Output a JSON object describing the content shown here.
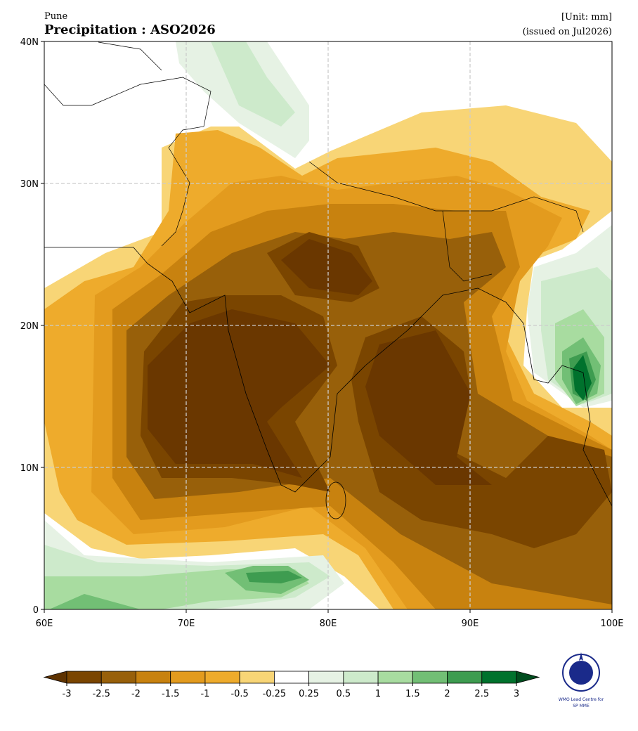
{
  "header": {
    "location": "Pune",
    "title": "Precipitation : ASO2026",
    "unit": "[Unit: mm]",
    "issued": "(issued on Jul2026)"
  },
  "map": {
    "xlim": [
      60,
      100
    ],
    "ylim": [
      0,
      40
    ],
    "xticks": [
      {
        "value": 60,
        "label": "60E"
      },
      {
        "value": 70,
        "label": "70E"
      },
      {
        "value": 80,
        "label": "80E"
      },
      {
        "value": 90,
        "label": "90E"
      },
      {
        "value": 100,
        "label": "100E"
      }
    ],
    "yticks": [
      0,
      {
        "value": 10,
        "label": "10N"
      },
      {
        "value": 20,
        "label": "20N"
      },
      {
        "value": 30,
        "label": "30N"
      },
      {
        "value": 40,
        "label": "40N"
      }
    ],
    "grid": true
  },
  "colorbar": {
    "levels": [
      -3,
      -2.5,
      -2,
      -1.5,
      -1,
      -0.5,
      -0.25,
      0.25,
      0.5,
      1,
      1.5,
      2,
      2.5,
      3
    ],
    "colors": [
      "#7a4500",
      "#98600a",
      "#c8820f",
      "#e39b1e",
      "#eeab2c",
      "#f8d576",
      "#ffffff",
      "#e6f2e4",
      "#cdeacb",
      "#a8dca0",
      "#72bf75",
      "#3e9c50",
      "#00722d"
    ],
    "extend_colors": [
      "#5e3200",
      "#004d1e"
    ]
  },
  "logo": {
    "line1": "WMO Lead Centre for",
    "line2": "SP MME"
  }
}
